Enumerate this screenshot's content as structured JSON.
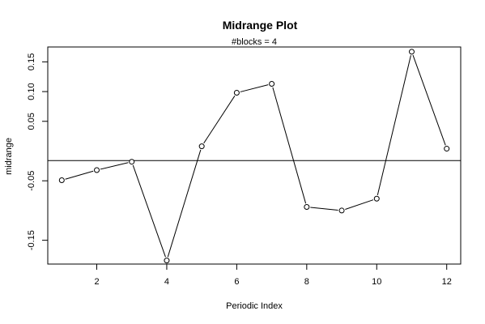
{
  "chart_data": {
    "type": "line",
    "title": "Midrange Plot",
    "subtitle": "#blocks =  4",
    "xlabel": "Periodic Index",
    "ylabel": "midrange",
    "x": [
      1,
      2,
      3,
      4,
      5,
      6,
      7,
      8,
      9,
      10,
      11,
      12
    ],
    "values": [
      -0.049,
      -0.032,
      -0.018,
      -0.184,
      0.008,
      0.098,
      0.113,
      -0.094,
      -0.1,
      -0.08,
      0.167,
      0.004
    ],
    "reference_line": -0.016,
    "xlim": [
      0.6,
      12.4
    ],
    "ylim": [
      -0.19,
      0.175
    ],
    "xticks": [
      2,
      4,
      6,
      8,
      10,
      12
    ],
    "yticks": [
      -0.15,
      -0.05,
      0.05,
      0.1,
      0.15
    ],
    "ytick_labels": [
      "-0.15",
      "-0.05",
      "0.05",
      "0.10",
      "0.15"
    ],
    "grid": false,
    "marker": "open-circle"
  }
}
